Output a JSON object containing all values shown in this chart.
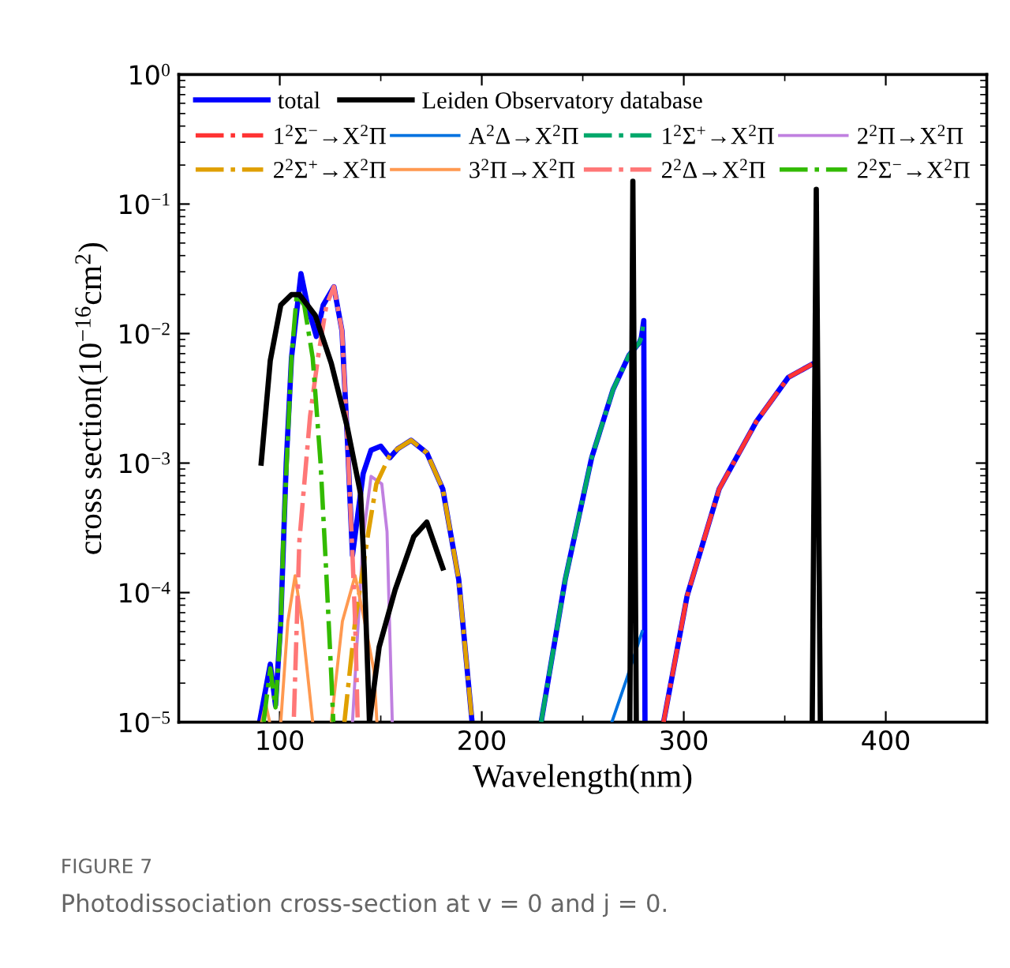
{
  "chart_data": {
    "type": "line",
    "xlabel": "Wavelength(nm)",
    "ylabel": "cross section(10$^{−16}$cm$^{2}$)",
    "log": "y",
    "xlim": [
      50,
      450
    ],
    "xticks": [
      {
        "value": 50,
        "label": null
      },
      100,
      {
        "value": 150,
        "label": null
      },
      200,
      {
        "value": 250,
        "label": null
      },
      300,
      {
        "value": 350,
        "label": null
      },
      400,
      {
        "value": 450,
        "label": null
      }
    ],
    "ylim": [
      1e-05,
      1
    ],
    "yticks": [
      {
        "value": 1e-05,
        "label": "10$^{−5}$"
      },
      {
        "value": 0.0001,
        "label": "10$^{−4}$"
      },
      {
        "value": 0.001,
        "label": "10$^{−3}$"
      },
      {
        "value": 0.01,
        "label": "10$^{−2}$"
      },
      {
        "value": 0.1,
        "label": "10$^{−1}$"
      },
      {
        "value": 1,
        "label": "10$^{0}$"
      }
    ],
    "grid": false,
    "legend": "top",
    "marker": "none",
    "annotations": [
      "FIGURE 7",
      "Photodissociation cross-section at v = 0 and j = 0."
    ],
    "series": [
      {
        "name": "total",
        "color": "#0000ff",
        "line_style": "solid",
        "x": [
          90,
          95.3,
          97.9,
          100.5,
          103.2,
          105.8,
          110.5,
          113.7,
          118.1,
          121.5,
          126.8,
          130.8,
          133.4,
          136,
          141.3,
          145.2,
          150,
          154.5,
          158.4,
          165,
          172.8,
          180.7,
          188.6,
          195.2,
          210,
          229.4,
          241.3,
          254.4,
          265,
          272.9,
          278,
          279,
          280.2,
          280.8,
          285,
          290,
          301.7,
          317.5,
          336,
          351.8,
          363.6
        ],
        "values": [
          1e-05,
          2.8e-05,
          1.35e-05,
          6e-05,
          0.001,
          0.0065,
          0.029,
          0.0166,
          0.0095,
          0.0166,
          0.023,
          0.0105,
          0.0016,
          0.000195,
          0.00083,
          0.00126,
          0.00135,
          0.0011,
          0.00129,
          0.0015,
          0.0012,
          0.00063,
          0.000126,
          1e-05,
          null,
          1e-05,
          0.000126,
          0.0011,
          0.0037,
          0.0068,
          0.0085,
          0.0093,
          0.0126,
          1e-05,
          null,
          1e-05,
          9.5e-05,
          0.00063,
          0.0021,
          0.0046,
          0.0058
        ]
      },
      {
        "name": "Leiden Observatory database",
        "color": "#000000",
        "line_style": "solid",
        "x": [
          90.8,
          95.3,
          100.5,
          105.8,
          109.7,
          117.6,
          125.5,
          133.4,
          140,
          141.8,
          144.4,
          149.2,
          157.1,
          166.3,
          172.8,
          180.7,
          220,
          273.3,
          274.8,
          276.5,
          320,
          363.6,
          365.6,
          367.6
        ],
        "values": [
          0.001,
          0.0062,
          0.0166,
          0.02,
          0.02,
          0.0138,
          0.0059,
          0.0019,
          0.00058,
          0.000155,
          1e-05,
          3.8e-05,
          0.000105,
          0.00027,
          0.00035,
          0.000155,
          null,
          1e-05,
          0.15,
          1e-05,
          null,
          1e-05,
          0.13,
          1e-05
        ]
      },
      {
        "name": "1$^{2}$Σ$^{−}$→X$^{2}$Π",
        "color": "#ff3333",
        "line_style": "dashdot",
        "x": [
          290,
          301.7,
          317.5,
          336,
          351.8,
          363.6
        ],
        "values": [
          1e-05,
          9.5e-05,
          0.00063,
          0.0021,
          0.0046,
          0.0058
        ]
      },
      {
        "name": "A$^{2}$Δ→X$^{2}$Π",
        "color": "#0072e0",
        "line_style": "solid",
        "x": [
          264.4,
          271.5,
          279.4
        ],
        "values": [
          1e-05,
          2.1e-05,
          5e-05
        ]
      },
      {
        "name": "1$^{2}$Σ$^{+}$→X$^{2}$Π",
        "color": "#00a86b",
        "line_style": "dashdot",
        "x": [
          229.4,
          241.3,
          254.4,
          265,
          272.9,
          278,
          279,
          280.2
        ],
        "values": [
          1e-05,
          0.000126,
          0.0011,
          0.0037,
          0.0068,
          0.0085,
          0.0093,
          0.0126
        ]
      },
      {
        "name": "2$^{2}$Π→X$^{2}$Π",
        "color": "#c080e0",
        "line_style": "solid",
        "x": [
          136,
          141.3,
          145.2,
          150.5,
          153.1,
          155.7
        ],
        "values": [
          1e-05,
          0.00027,
          0.00079,
          0.00069,
          0.000295,
          1e-05
        ]
      },
      {
        "name": "2$^{2}$Σ$^{+}$→X$^{2}$Π",
        "color": "#e0a000",
        "line_style": "dashdot",
        "x": [
          132,
          137.3,
          143.9,
          147.8,
          154.5,
          158.4,
          165,
          172.8,
          180.7,
          188.6,
          195.2
        ],
        "values": [
          1e-05,
          6e-05,
          0.000295,
          0.00069,
          0.00115,
          0.00129,
          0.0015,
          0.0012,
          0.00063,
          0.000126,
          1e-05
        ]
      },
      {
        "name": "3$^{2}$Π→X$^{2}$Π",
        "color": "#ff9950",
        "line_style": "solid",
        "x": [
          91,
          93,
          95,
          97,
          100.5,
          104,
          107.6,
          111,
          116.3,
          120,
          125.5,
          131,
          137.3,
          142,
          146.6,
          148.1
        ],
        "values": [
          1e-05,
          1.4e-05,
          1e-05,
          null,
          1e-05,
          6e-05,
          0.000135,
          6e-05,
          1e-05,
          null,
          1e-05,
          6e-05,
          0.000135,
          6e-05,
          2.5e-05,
          1e-05
        ]
      },
      {
        "name": "2$^{2}$Δ→X$^{2}$Π",
        "color": "#ff7777",
        "line_style": "dashdot",
        "x": [
          107,
          109.7,
          115,
          118.9,
          123.1,
          126.8,
          130.8,
          133.4,
          136,
          137.3,
          138.6
        ],
        "values": [
          1.1e-05,
          0.00025,
          0.0023,
          0.0065,
          0.0166,
          0.023,
          0.0105,
          0.0016,
          0.000195,
          6e-05,
          1e-05
        ]
      },
      {
        "name": "2$^{2}$Σ$^{−}$→X$^{2}$Π",
        "color": "#33bb00",
        "line_style": "dashdot",
        "x": [
          92,
          95.3,
          97.9,
          100.5,
          101.8,
          105.8,
          108.4,
          112.1,
          116.3,
          120.2,
          122.9,
          125.5,
          126.5
        ],
        "values": [
          1e-05,
          2.6e-05,
          1.3e-05,
          5.6e-05,
          0.00027,
          0.0065,
          0.02,
          0.0166,
          0.0065,
          0.001,
          0.000155,
          2.3e-05,
          1e-05
        ]
      }
    ]
  }
}
